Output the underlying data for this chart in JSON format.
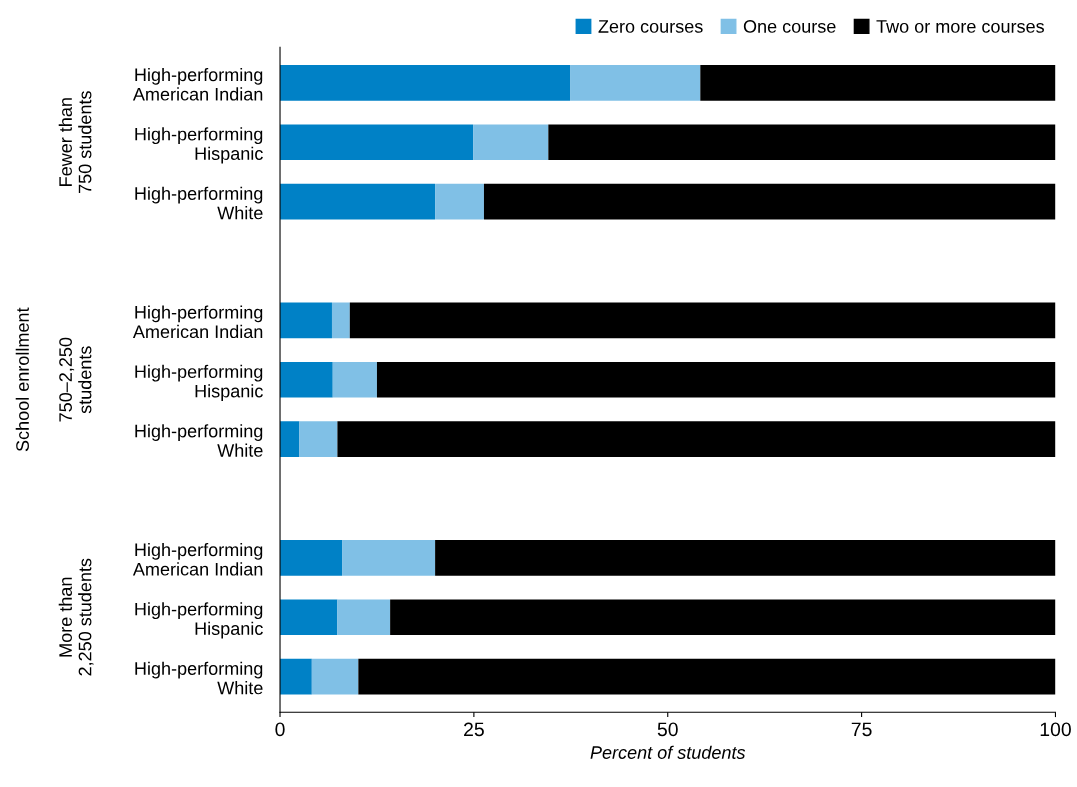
{
  "chart_data": {
    "type": "bar",
    "orientation": "horizontal",
    "stacked": true,
    "xlabel": "Percent of students",
    "categories": [
      "High-performing\nAmerican Indian",
      "High-performing\nHispanic",
      "High-performing\nWhite",
      null,
      "High-performing\nAmerican Indian",
      "High-performing\nHispanic",
      "High-performing\nWhite",
      null,
      "High-performing\nAmerican Indian",
      "High-performing\nHispanic",
      "High-performing\nWhite"
    ],
    "series": [
      {
        "name": "Zero courses",
        "color": "#0081c6",
        "values": [
          37.4,
          24.9,
          20.0,
          null,
          6.7,
          6.8,
          2.5,
          null,
          8.0,
          7.4,
          4.1
        ]
      },
      {
        "name": "One course",
        "color": "#80c0e6",
        "values": [
          16.8,
          9.7,
          6.3,
          null,
          2.3,
          5.7,
          4.9,
          null,
          12.0,
          6.8,
          6.0
        ]
      },
      {
        "name": "Two or more courses",
        "color": "#000000",
        "values": [
          45.8,
          65.4,
          73.7,
          null,
          91.0,
          87.5,
          92.6,
          null,
          80.0,
          85.8,
          89.9
        ]
      }
    ],
    "annotations": [
      "Fewer than\n750 students",
      "750–2,250\nstudents",
      "More than\n2,250 students",
      "School enrollment"
    ],
    "xlim": [
      0,
      100
    ],
    "xticks": [
      0,
      25,
      50,
      75,
      100
    ],
    "grid": false,
    "legend": "top right"
  }
}
